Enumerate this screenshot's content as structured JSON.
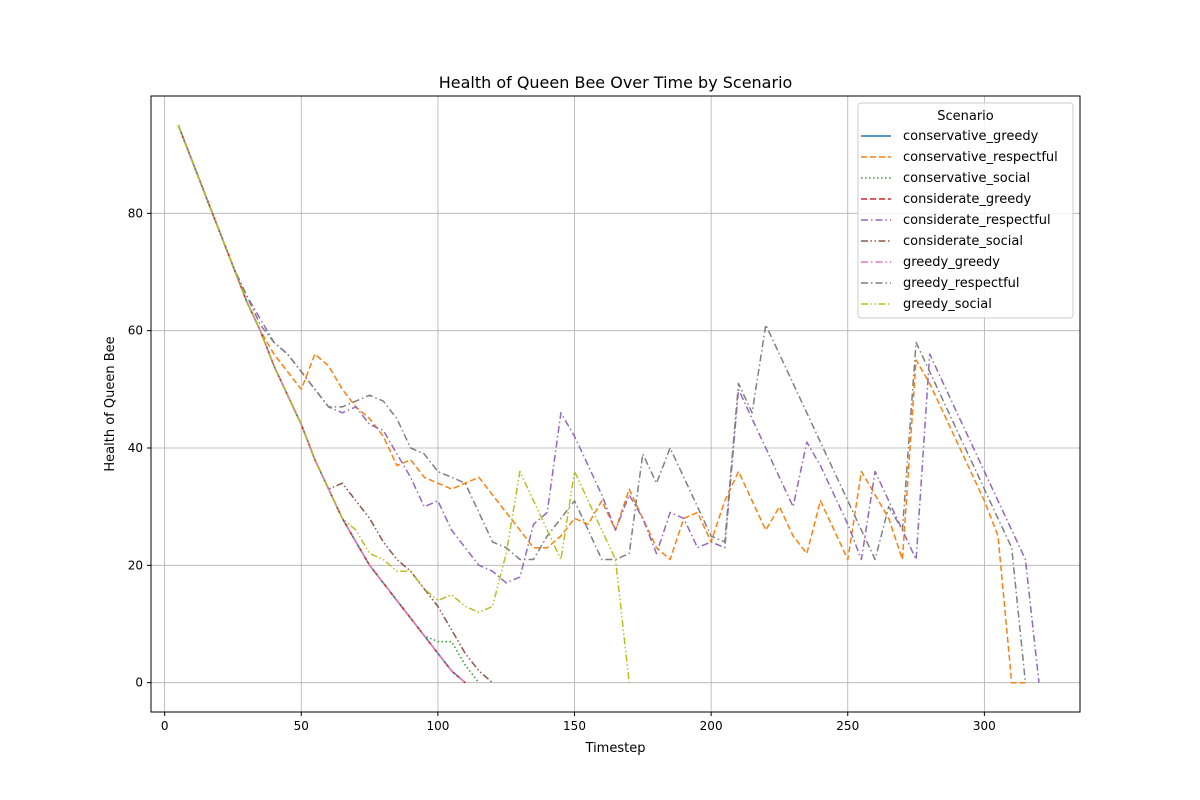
{
  "chart_data": {
    "type": "line",
    "title": "Health of Queen Bee Over Time by Scenario",
    "xlabel": "Timestep",
    "ylabel": "Health of Queen Bee",
    "xlim": [
      -5,
      335
    ],
    "ylim": [
      -5,
      100
    ],
    "xticks": [
      0,
      50,
      100,
      150,
      200,
      250,
      300
    ],
    "yticks": [
      0,
      20,
      40,
      60,
      80
    ],
    "grid": true,
    "legend": {
      "title": "Scenario",
      "placement": "top-right"
    },
    "series": [
      {
        "name": "conservative_greedy",
        "color": "#1f77b4",
        "dash": "solid",
        "x": [
          5,
          10,
          15,
          20,
          25,
          30,
          35,
          40,
          45,
          50,
          55,
          60,
          65,
          70,
          75,
          80,
          85,
          90,
          95,
          100,
          105,
          110
        ],
        "y": [
          95,
          89,
          83,
          77,
          71,
          65,
          60,
          54,
          49,
          44,
          38,
          33,
          28,
          24,
          20,
          17,
          14,
          11,
          8,
          5,
          2,
          0
        ]
      },
      {
        "name": "conservative_respectful",
        "color": "#ff7f0e",
        "dash": "dashed",
        "x": [
          5,
          10,
          15,
          20,
          25,
          30,
          35,
          40,
          45,
          50,
          55,
          60,
          65,
          70,
          75,
          80,
          85,
          90,
          95,
          100,
          105,
          110,
          115,
          120,
          125,
          130,
          135,
          140,
          145,
          150,
          155,
          160,
          165,
          170,
          175,
          180,
          185,
          190,
          195,
          200,
          205,
          210,
          215,
          220,
          225,
          230,
          235,
          240,
          245,
          250,
          255,
          260,
          265,
          270,
          275,
          280,
          285,
          290,
          295,
          300,
          305,
          310,
          315
        ],
        "y": [
          95,
          89,
          83,
          77,
          71,
          65,
          60,
          56,
          53,
          50,
          56,
          54,
          50,
          47,
          45,
          42,
          37,
          38,
          35,
          34,
          33,
          34,
          35,
          32,
          29,
          26,
          23,
          23,
          25,
          28,
          27,
          31,
          26,
          33,
          28,
          23,
          21,
          28,
          29,
          24,
          31,
          36,
          31,
          26,
          30,
          25,
          22,
          31,
          26,
          21,
          36,
          32,
          28,
          21,
          55,
          51,
          46,
          41,
          36,
          31,
          25,
          0,
          0
        ]
      },
      {
        "name": "conservative_social",
        "color": "#2ca02c",
        "dash": "dotted",
        "x": [
          5,
          10,
          15,
          20,
          25,
          30,
          35,
          40,
          45,
          50,
          55,
          60,
          65,
          70,
          75,
          80,
          85,
          90,
          95,
          100,
          105,
          110,
          115
        ],
        "y": [
          95,
          89,
          83,
          77,
          71,
          65,
          60,
          54,
          49,
          44,
          38,
          33,
          28,
          24,
          20,
          17,
          14,
          11,
          8,
          7,
          7,
          3,
          0
        ]
      },
      {
        "name": "considerate_greedy",
        "color": "#d62728",
        "dash": "dashed",
        "x": [
          5,
          10,
          15,
          20,
          25,
          30,
          35,
          40,
          45,
          50,
          55,
          60,
          65,
          70,
          75,
          80,
          85,
          90,
          95,
          100,
          105,
          110
        ],
        "y": [
          95,
          89,
          83,
          77,
          71,
          65,
          60,
          54,
          49,
          44,
          38,
          33,
          28,
          24,
          20,
          17,
          14,
          11,
          8,
          5,
          2,
          0
        ]
      },
      {
        "name": "considerate_respectful",
        "color": "#9467bd",
        "dash": "dashdot",
        "x": [
          5,
          10,
          15,
          20,
          25,
          30,
          35,
          40,
          45,
          50,
          55,
          60,
          65,
          70,
          75,
          80,
          85,
          90,
          95,
          100,
          105,
          110,
          115,
          120,
          125,
          130,
          135,
          140,
          145,
          150,
          155,
          160,
          165,
          170,
          175,
          180,
          185,
          190,
          195,
          200,
          205,
          210,
          215,
          220,
          225,
          230,
          235,
          240,
          245,
          250,
          255,
          260,
          265,
          270,
          275,
          280,
          285,
          290,
          295,
          300,
          305,
          310,
          315,
          320
        ],
        "y": [
          95,
          89,
          83,
          77,
          71,
          66,
          62,
          58,
          56,
          53,
          50,
          47,
          46,
          47,
          44,
          43,
          39,
          35,
          30,
          31,
          26,
          23,
          20,
          19,
          17,
          18,
          27,
          29,
          46,
          42,
          37,
          32,
          26,
          32,
          28,
          22,
          29,
          28,
          23,
          24,
          23,
          50,
          45,
          40,
          35,
          30,
          41,
          37,
          32,
          27,
          21,
          36,
          31,
          26,
          21,
          56,
          51,
          46,
          41,
          36,
          31,
          26,
          21,
          0
        ]
      },
      {
        "name": "considerate_social",
        "color": "#8c564b",
        "dash": "dashdotdot",
        "x": [
          5,
          10,
          15,
          20,
          25,
          30,
          35,
          40,
          45,
          50,
          55,
          60,
          65,
          70,
          75,
          80,
          85,
          90,
          95,
          100,
          105,
          110,
          115,
          120
        ],
        "y": [
          95,
          89,
          83,
          77,
          71,
          65,
          60,
          54,
          49,
          44,
          38,
          33,
          34,
          31,
          28,
          24,
          21,
          19,
          16,
          13,
          9,
          5,
          2,
          0
        ]
      },
      {
        "name": "greedy_greedy",
        "color": "#e377c2",
        "dash": "dashdot",
        "x": [
          5,
          10,
          15,
          20,
          25,
          30,
          35,
          40,
          45,
          50,
          55,
          60,
          65,
          70,
          75,
          80,
          85,
          90,
          95,
          100,
          105,
          110
        ],
        "y": [
          95,
          89,
          83,
          77,
          71,
          65,
          60,
          54,
          49,
          44,
          38,
          33,
          28,
          24,
          20,
          17,
          14,
          11,
          8,
          5,
          2,
          0
        ]
      },
      {
        "name": "greedy_respectful",
        "color": "#7f7f7f",
        "dash": "dashdot",
        "x": [
          5,
          10,
          15,
          20,
          25,
          30,
          35,
          40,
          45,
          50,
          55,
          60,
          65,
          70,
          75,
          80,
          85,
          90,
          95,
          100,
          105,
          110,
          115,
          120,
          125,
          130,
          135,
          140,
          145,
          150,
          155,
          160,
          165,
          170,
          175,
          180,
          185,
          190,
          195,
          200,
          205,
          210,
          215,
          220,
          225,
          230,
          235,
          240,
          245,
          250,
          255,
          260,
          265,
          270,
          275,
          280,
          285,
          290,
          295,
          300,
          305,
          310,
          315
        ],
        "y": [
          95,
          89,
          83,
          77,
          71,
          66,
          61,
          58,
          56,
          53,
          50,
          47,
          47,
          48,
          49,
          48,
          45,
          40,
          39,
          36,
          35,
          34,
          29,
          24,
          23,
          21,
          21,
          25,
          28,
          31,
          26,
          21,
          21,
          22,
          39,
          34,
          40,
          35,
          30,
          25,
          24,
          51,
          46,
          61,
          56,
          51,
          46,
          41,
          36,
          31,
          26,
          21,
          30,
          26,
          58,
          53,
          48,
          43,
          38,
          33,
          28,
          23,
          0
        ]
      },
      {
        "name": "greedy_social",
        "color": "#bcbd22",
        "dash": "dashdotdot",
        "x": [
          5,
          10,
          15,
          20,
          25,
          30,
          35,
          40,
          45,
          50,
          55,
          60,
          65,
          70,
          75,
          80,
          85,
          90,
          95,
          100,
          105,
          110,
          115,
          120,
          125,
          130,
          135,
          140,
          145,
          150,
          155,
          160,
          165,
          170
        ],
        "y": [
          95,
          89,
          83,
          77,
          71,
          65,
          60,
          54,
          49,
          44,
          38,
          33,
          28,
          26,
          22,
          21,
          19,
          19,
          16,
          14,
          15,
          13,
          12,
          13,
          22,
          36,
          31,
          26,
          21,
          36,
          31,
          26,
          21,
          0
        ]
      }
    ]
  }
}
